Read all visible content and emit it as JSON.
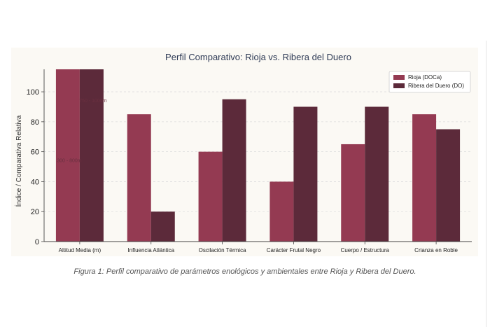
{
  "chart_data": {
    "type": "bar",
    "title": "Perfil Comparativo: Rioja vs. Ribera del Duero",
    "ylabel": "Índice / Comparativa Relativa",
    "xlabel": "",
    "ylim": [
      0,
      115
    ],
    "yticks": [
      "0",
      "20",
      "40",
      "60",
      "80",
      "100"
    ],
    "grid": "horizontal-dashed",
    "legend_position": "top-right",
    "categories": [
      "Altitud Media (m)",
      "Influencia Atlántica",
      "Oscilación Térmica",
      "Carácter Frutal Negro",
      "Cuerpo / Estructura",
      "Crianza en Roble"
    ],
    "series": [
      {
        "name": "Rioja (DOCa)",
        "color": "#943a52",
        "values": [
          115,
          85,
          60,
          40,
          65,
          85
        ]
      },
      {
        "name": "Ribera del Duero (DO)",
        "color": "#5c2a3a",
        "values": [
          115,
          20,
          95,
          90,
          90,
          75
        ]
      }
    ],
    "annotations": [
      {
        "text": "300 - 800m",
        "category": "Altitud Media (m)",
        "series": 0,
        "y": 53
      },
      {
        "text": "750 - 1000m",
        "category": "Altitud Media (m)",
        "series": 1,
        "y": 93
      }
    ]
  },
  "caption": "Figura 1: Perfil comparativo de parámetros enológicos y ambientales entre Rioja y Ribera del Duero."
}
